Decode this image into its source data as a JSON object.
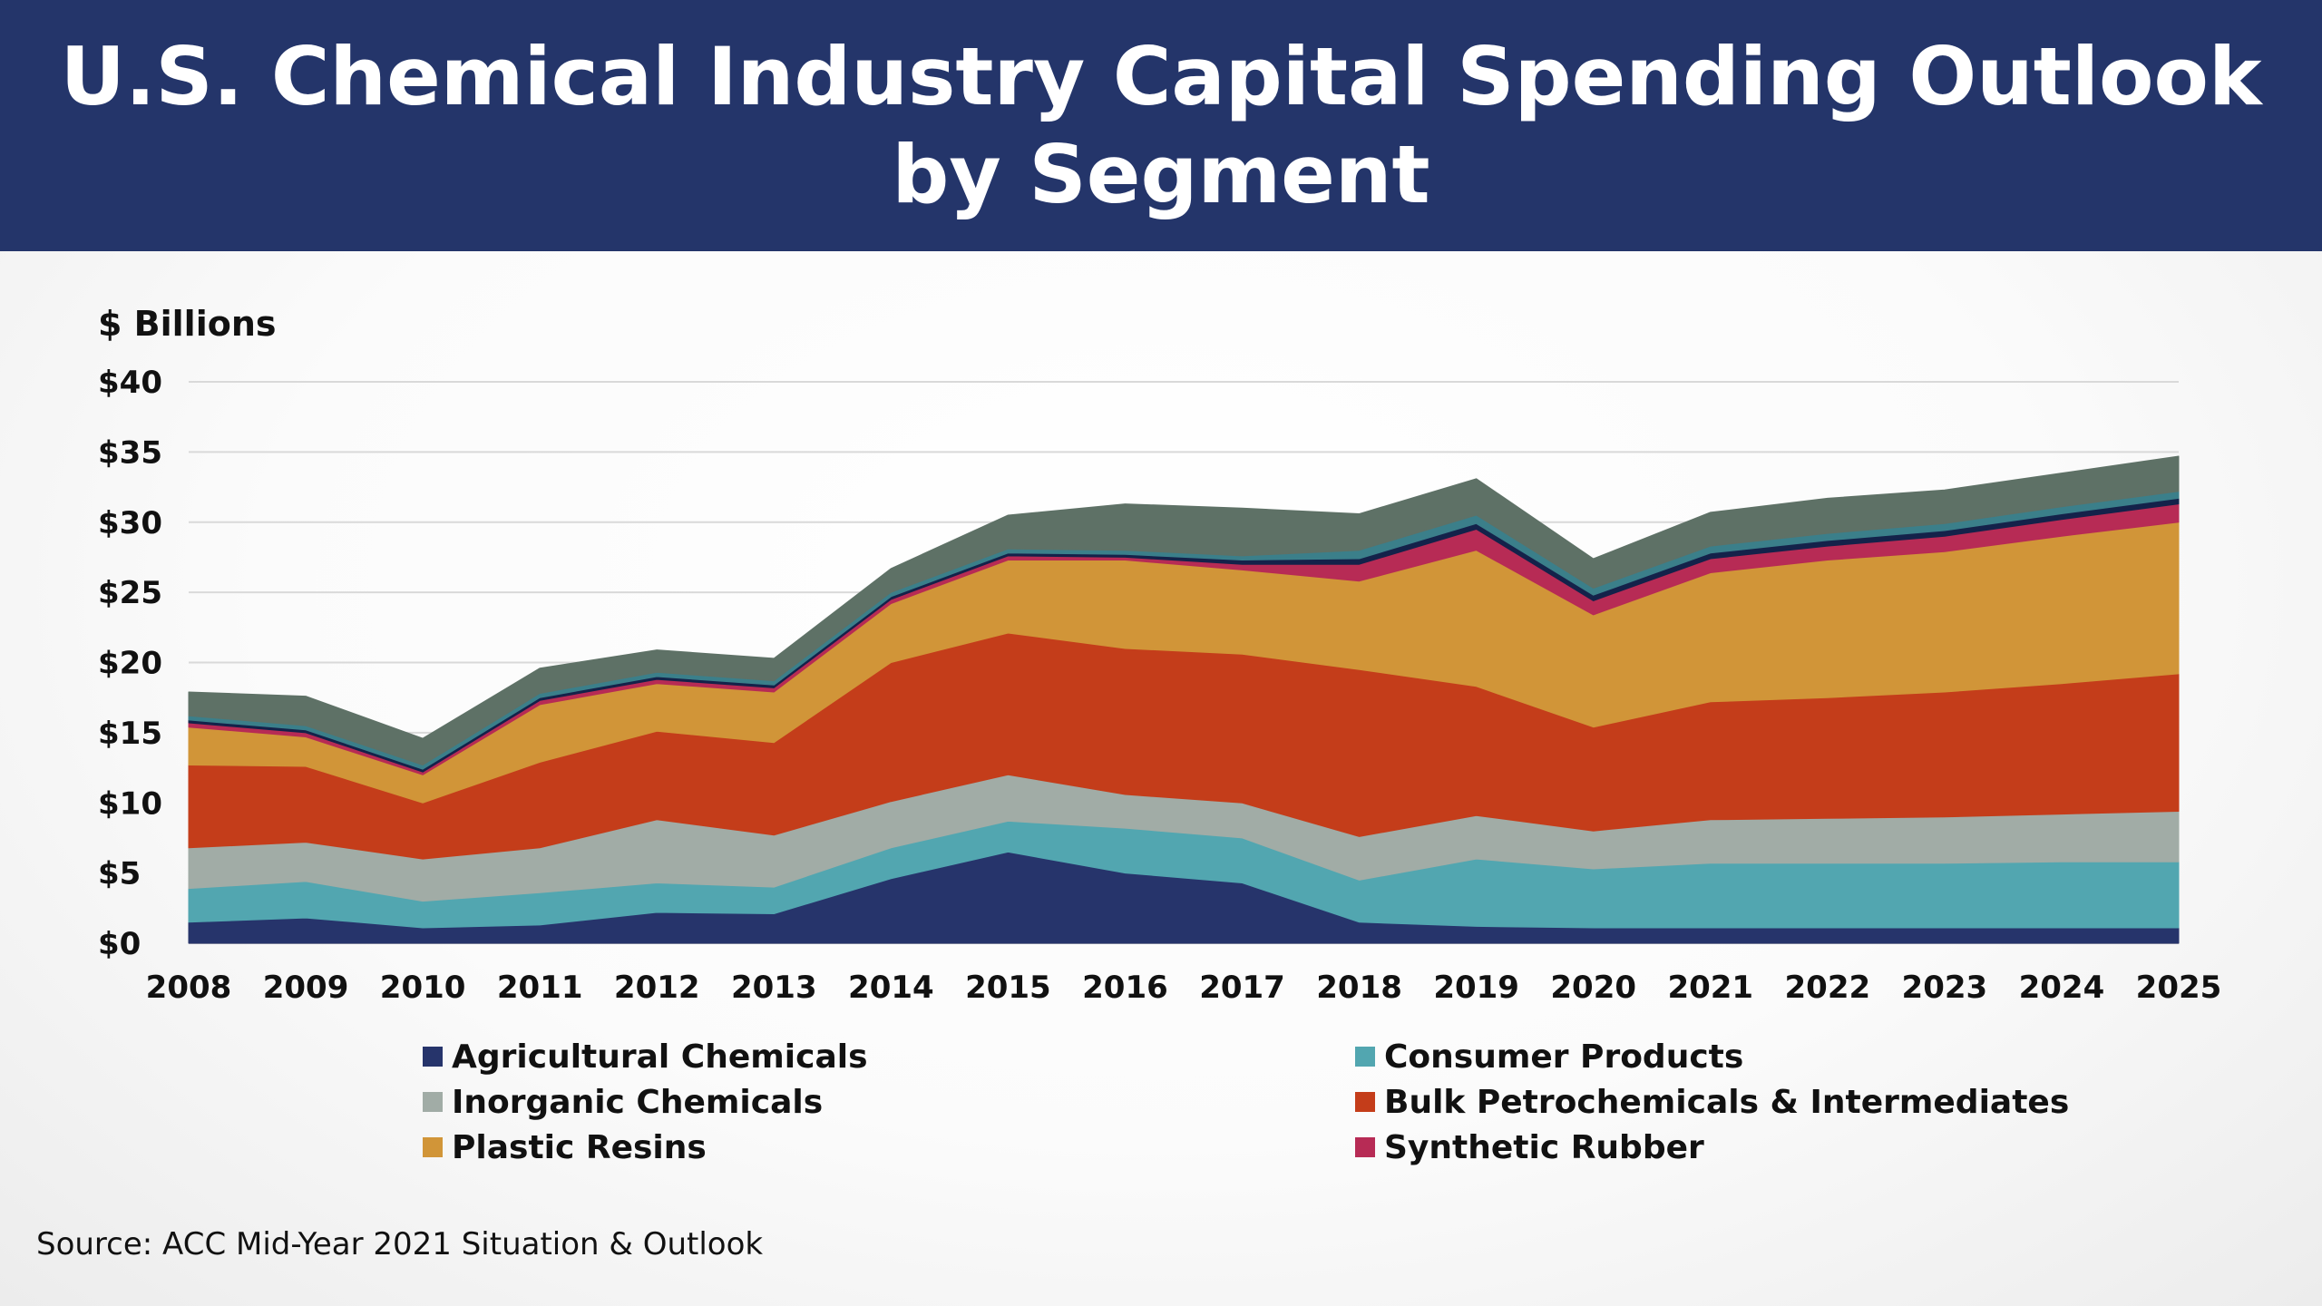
{
  "header": {
    "title_line1": "U.S. Chemical Industry Capital Spending Outlook",
    "title_line2": "by Segment"
  },
  "source_note": "Source: ACC Mid-Year 2021 Situation & Outlook",
  "chart_data": {
    "type": "area",
    "stacked": true,
    "ylabel": "$ Billions",
    "ylim": [
      0,
      40
    ],
    "yticks": [
      "$0",
      "$5",
      "$10",
      "$15",
      "$20",
      "$25",
      "$30",
      "$35",
      "$40"
    ],
    "ytick_values": [
      0,
      5,
      10,
      15,
      20,
      25,
      30,
      35,
      40
    ],
    "grid": true,
    "legend_position": "bottom",
    "categories": [
      "2008",
      "2009",
      "2010",
      "2011",
      "2012",
      "2013",
      "2014",
      "2015",
      "2016",
      "2017",
      "2018",
      "2019",
      "2020",
      "2021",
      "2022",
      "2023",
      "2024",
      "2025"
    ],
    "series": [
      {
        "name": "Agricultural Chemicals",
        "color": "#26346b",
        "values": [
          1.5,
          1.8,
          1.1,
          1.3,
          2.2,
          2.1,
          4.6,
          6.5,
          5.0,
          4.3,
          1.5,
          1.2,
          1.1,
          1.1,
          1.1,
          1.1,
          1.1,
          1.1
        ]
      },
      {
        "name": "Consumer Products",
        "color": "#52a6b0",
        "values": [
          2.4,
          2.6,
          1.9,
          2.3,
          2.1,
          1.9,
          2.2,
          2.2,
          3.2,
          3.2,
          3.0,
          4.8,
          4.2,
          4.6,
          4.6,
          4.6,
          4.7,
          4.7
        ]
      },
      {
        "name": "Inorganic Chemicals",
        "color": "#a1aca6",
        "values": [
          2.9,
          2.8,
          3.0,
          3.2,
          4.5,
          3.7,
          3.3,
          3.3,
          2.4,
          2.5,
          3.1,
          3.1,
          2.7,
          3.1,
          3.2,
          3.3,
          3.4,
          3.6
        ]
      },
      {
        "name": "Bulk Petrochemicals & Intermediates",
        "color": "#c43d1a",
        "values": [
          5.9,
          5.4,
          4.0,
          6.1,
          6.3,
          6.6,
          9.9,
          10.1,
          10.4,
          10.6,
          11.9,
          9.2,
          7.4,
          8.4,
          8.6,
          8.9,
          9.3,
          9.8
        ]
      },
      {
        "name": "Plastic Resins",
        "color": "#d19538",
        "values": [
          2.7,
          2.1,
          2.0,
          4.1,
          3.4,
          3.6,
          4.2,
          5.2,
          6.3,
          6.0,
          6.3,
          9.7,
          8.0,
          9.2,
          9.8,
          10.0,
          10.5,
          10.8
        ]
      },
      {
        "name": "Synthetic Rubber",
        "color": "#b72b55",
        "values": [
          0.3,
          0.3,
          0.2,
          0.3,
          0.3,
          0.3,
          0.3,
          0.3,
          0.2,
          0.4,
          1.2,
          1.5,
          1.0,
          1.0,
          1.0,
          1.1,
          1.2,
          1.3
        ]
      },
      {
        "name": "",
        "color": "#14224a",
        "values": [
          0.2,
          0.2,
          0.2,
          0.2,
          0.2,
          0.2,
          0.2,
          0.2,
          0.2,
          0.3,
          0.4,
          0.4,
          0.4,
          0.4,
          0.4,
          0.4,
          0.4,
          0.4
        ]
      },
      {
        "name": "",
        "color": "#3b7f8a",
        "values": [
          0.3,
          0.3,
          0.3,
          0.3,
          0.3,
          0.3,
          0.3,
          0.3,
          0.3,
          0.3,
          0.6,
          0.6,
          0.5,
          0.5,
          0.5,
          0.5,
          0.5,
          0.5
        ]
      },
      {
        "name": "",
        "color": "#5e7166",
        "values": [
          1.7,
          2.1,
          1.9,
          1.8,
          1.6,
          1.6,
          1.7,
          2.4,
          3.3,
          3.4,
          2.6,
          2.6,
          2.1,
          2.4,
          2.5,
          2.4,
          2.4,
          2.5
        ]
      }
    ]
  },
  "legend": {
    "items": [
      {
        "label": "Agricultural Chemicals",
        "color": "#26346b"
      },
      {
        "label": "Consumer Products",
        "color": "#52a6b0"
      },
      {
        "label": "Inorganic Chemicals",
        "color": "#a1aca6"
      },
      {
        "label": "Bulk Petrochemicals & Intermediates",
        "color": "#c43d1a"
      },
      {
        "label": "Plastic Resins",
        "color": "#d19538"
      },
      {
        "label": "Synthetic Rubber",
        "color": "#b72b55"
      }
    ]
  }
}
